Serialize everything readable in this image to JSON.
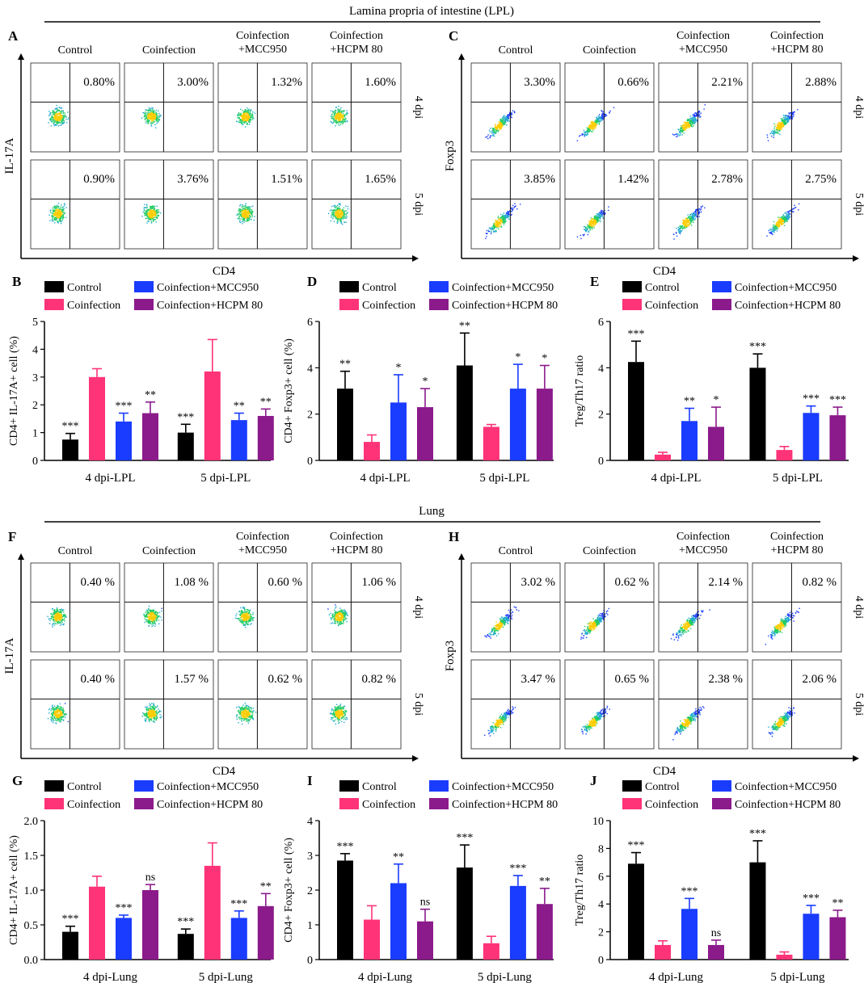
{
  "sections": {
    "top": "Lamina propria of intestine (LPL)",
    "bottom": "Lung"
  },
  "panel_letters": [
    "A",
    "B",
    "C",
    "D",
    "E",
    "F",
    "G",
    "H",
    "I",
    "J"
  ],
  "flow_panels": [
    {
      "letter": "A",
      "ylabel": "IL-17A",
      "xlabel": "CD4",
      "columns": [
        "Control",
        "Coinfection",
        "Coinfection\n+MCC950",
        "Coinfection\n+HCPM 80"
      ],
      "rows": [
        "4 dpi",
        "5 dpi"
      ],
      "percents": [
        [
          "0.80%",
          "3.00%",
          "1.32%",
          "1.60%"
        ],
        [
          "0.90%",
          "3.76%",
          "1.51%",
          "1.65%"
        ]
      ],
      "diagonal": false
    },
    {
      "letter": "C",
      "ylabel": "Foxp3",
      "xlabel": "CD4",
      "columns": [
        "Control",
        "Coinfection",
        "Coinfection\n+MCC950",
        "Coinfection\n+HCPM 80"
      ],
      "rows": [
        "4 dpi",
        "5 dpi"
      ],
      "percents": [
        [
          "3.30%",
          "0.66%",
          "2.21%",
          "2.88%"
        ],
        [
          "3.85%",
          "1.42%",
          "2.78%",
          "2.75%"
        ]
      ],
      "diagonal": true
    },
    {
      "letter": "F",
      "ylabel": "IL-17A",
      "xlabel": "CD4",
      "columns": [
        "Control",
        "Coinfection",
        "Coinfection\n+MCC950",
        "Coinfection\n+HCPM 80"
      ],
      "rows": [
        "4 dpi",
        "5 dpi"
      ],
      "percents": [
        [
          "0.40 %",
          "1.08 %",
          "0.60 %",
          "1.06 %"
        ],
        [
          "0.40 %",
          "1.57 %",
          "0.62 %",
          "0.82 %"
        ]
      ],
      "diagonal": false
    },
    {
      "letter": "H",
      "ylabel": "Foxp3",
      "xlabel": "CD4",
      "columns": [
        "Control",
        "Coinfection",
        "Coinfection\n+MCC950",
        "Coinfection\n+HCPM 80"
      ],
      "rows": [
        "4 dpi",
        "5 dpi"
      ],
      "percents": [
        [
          "3.02 %",
          "0.62 %",
          "2.14 %",
          "0.82 %"
        ],
        [
          "3.47 %",
          "0.65 %",
          "2.38 %",
          "2.06 %"
        ]
      ],
      "diagonal": true
    }
  ],
  "legend": [
    "Control",
    "Coinfection",
    "Coinfection+MCC950",
    "Coinfection+HCPM 80"
  ],
  "colors": {
    "Control": "#000000",
    "Coinfection": "#ff3377",
    "Coinfection+MCC950": "#1a3cff",
    "Coinfection+HCPM 80": "#8b1a8b"
  },
  "chart_data": [
    {
      "letter": "B",
      "type": "bar",
      "ylabel": "CD4+ IL-17A+ cell (%)",
      "categories": [
        "4 dpi-LPL",
        "5 dpi-LPL"
      ],
      "ylim": [
        0,
        5
      ],
      "yticks": [
        0,
        1,
        2,
        3,
        4,
        5
      ],
      "series": [
        {
          "name": "Control",
          "values": [
            0.75,
            1.0
          ],
          "errors": [
            0.22,
            0.3
          ],
          "sig": [
            "***",
            "***"
          ]
        },
        {
          "name": "Coinfection",
          "values": [
            3.0,
            3.2
          ],
          "errors": [
            0.3,
            1.15
          ],
          "sig": [
            "",
            ""
          ]
        },
        {
          "name": "Coinfection+MCC950",
          "values": [
            1.4,
            1.45
          ],
          "errors": [
            0.3,
            0.25
          ],
          "sig": [
            "***",
            "**"
          ]
        },
        {
          "name": "Coinfection+HCPM 80",
          "values": [
            1.7,
            1.6
          ],
          "errors": [
            0.4,
            0.25
          ],
          "sig": [
            "**",
            "**"
          ]
        }
      ]
    },
    {
      "letter": "D",
      "type": "bar",
      "ylabel": "CD4+ Foxp3+ cell (%)",
      "categories": [
        "4 dpi-LPL",
        "5 dpi-LPL"
      ],
      "ylim": [
        0,
        6
      ],
      "yticks": [
        0,
        2,
        4,
        6
      ],
      "series": [
        {
          "name": "Control",
          "values": [
            3.1,
            4.1
          ],
          "errors": [
            0.75,
            1.4
          ],
          "sig": [
            "**",
            "**"
          ]
        },
        {
          "name": "Coinfection",
          "values": [
            0.8,
            1.45
          ],
          "errors": [
            0.3,
            0.1
          ],
          "sig": [
            "",
            ""
          ]
        },
        {
          "name": "Coinfection+MCC950",
          "values": [
            2.5,
            3.1
          ],
          "errors": [
            1.2,
            1.05
          ],
          "sig": [
            "*",
            "*"
          ]
        },
        {
          "name": "Coinfection+HCPM 80",
          "values": [
            2.3,
            3.1
          ],
          "errors": [
            0.8,
            1.0
          ],
          "sig": [
            "*",
            "*"
          ]
        }
      ]
    },
    {
      "letter": "E",
      "type": "bar",
      "ylabel": "Treg/Th17 ratio",
      "categories": [
        "4 dpi-LPL",
        "5 dpi-LPL"
      ],
      "ylim": [
        0,
        6
      ],
      "yticks": [
        0,
        2,
        4,
        6
      ],
      "series": [
        {
          "name": "Control",
          "values": [
            4.25,
            4.0
          ],
          "errors": [
            0.9,
            0.6
          ],
          "sig": [
            "***",
            "***"
          ]
        },
        {
          "name": "Coinfection",
          "values": [
            0.25,
            0.45
          ],
          "errors": [
            0.1,
            0.15
          ],
          "sig": [
            "",
            ""
          ]
        },
        {
          "name": "Coinfection+MCC950",
          "values": [
            1.7,
            2.05
          ],
          "errors": [
            0.55,
            0.3
          ],
          "sig": [
            "**",
            "***"
          ]
        },
        {
          "name": "Coinfection+HCPM 80",
          "values": [
            1.45,
            1.95
          ],
          "errors": [
            0.85,
            0.35
          ],
          "sig": [
            "*",
            "***"
          ]
        }
      ]
    },
    {
      "letter": "G",
      "type": "bar",
      "ylabel": "CD4+ IL-17A+ cell (%)",
      "categories": [
        "4 dpi-Lung",
        "5 dpi-Lung"
      ],
      "ylim": [
        0,
        2.0
      ],
      "yticks": [
        "0.0",
        "0.5",
        "1.0",
        "1.5",
        "2.0"
      ],
      "series": [
        {
          "name": "Control",
          "values": [
            0.4,
            0.37
          ],
          "errors": [
            0.08,
            0.07
          ],
          "sig": [
            "***",
            "***"
          ]
        },
        {
          "name": "Coinfection",
          "values": [
            1.05,
            1.35
          ],
          "errors": [
            0.15,
            0.33
          ],
          "sig": [
            "",
            ""
          ]
        },
        {
          "name": "Coinfection+MCC950",
          "values": [
            0.6,
            0.6
          ],
          "errors": [
            0.04,
            0.1
          ],
          "sig": [
            "***",
            "***"
          ]
        },
        {
          "name": "Coinfection+HCPM 80",
          "values": [
            1.0,
            0.77
          ],
          "errors": [
            0.08,
            0.18
          ],
          "sig": [
            "ns",
            "**"
          ]
        }
      ]
    },
    {
      "letter": "I",
      "type": "bar",
      "ylabel": "CD4+ Foxp3+ cell (%)",
      "categories": [
        "4 dpi-Lung",
        "5 dpi-Lung"
      ],
      "ylim": [
        0,
        4
      ],
      "yticks": [
        0,
        1,
        2,
        3,
        4
      ],
      "series": [
        {
          "name": "Control",
          "values": [
            2.85,
            2.65
          ],
          "errors": [
            0.2,
            0.65
          ],
          "sig": [
            "***",
            "***"
          ]
        },
        {
          "name": "Coinfection",
          "values": [
            1.15,
            0.47
          ],
          "errors": [
            0.4,
            0.2
          ],
          "sig": [
            "",
            ""
          ]
        },
        {
          "name": "Coinfection+MCC950",
          "values": [
            2.2,
            2.12
          ],
          "errors": [
            0.55,
            0.3
          ],
          "sig": [
            "**",
            "***"
          ]
        },
        {
          "name": "Coinfection+HCPM 80",
          "values": [
            1.1,
            1.6
          ],
          "errors": [
            0.35,
            0.45
          ],
          "sig": [
            "ns",
            "**"
          ]
        }
      ]
    },
    {
      "letter": "J",
      "type": "bar",
      "ylabel": "Treg/Th17 ratio",
      "categories": [
        "4 dpi-Lung",
        "5 dpi-Lung"
      ],
      "ylim": [
        0,
        10
      ],
      "yticks": [
        0,
        2,
        4,
        6,
        8,
        10
      ],
      "series": [
        {
          "name": "Control",
          "values": [
            6.9,
            7.0
          ],
          "errors": [
            0.8,
            1.55
          ],
          "sig": [
            "***",
            "***"
          ]
        },
        {
          "name": "Coinfection",
          "values": [
            1.05,
            0.35
          ],
          "errors": [
            0.3,
            0.2
          ],
          "sig": [
            "",
            ""
          ]
        },
        {
          "name": "Coinfection+MCC950",
          "values": [
            3.65,
            3.3
          ],
          "errors": [
            0.75,
            0.6
          ],
          "sig": [
            "***",
            "***"
          ]
        },
        {
          "name": "Coinfection+HCPM 80",
          "values": [
            1.05,
            3.05
          ],
          "errors": [
            0.35,
            0.5
          ],
          "sig": [
            "ns",
            "**"
          ]
        }
      ]
    }
  ]
}
